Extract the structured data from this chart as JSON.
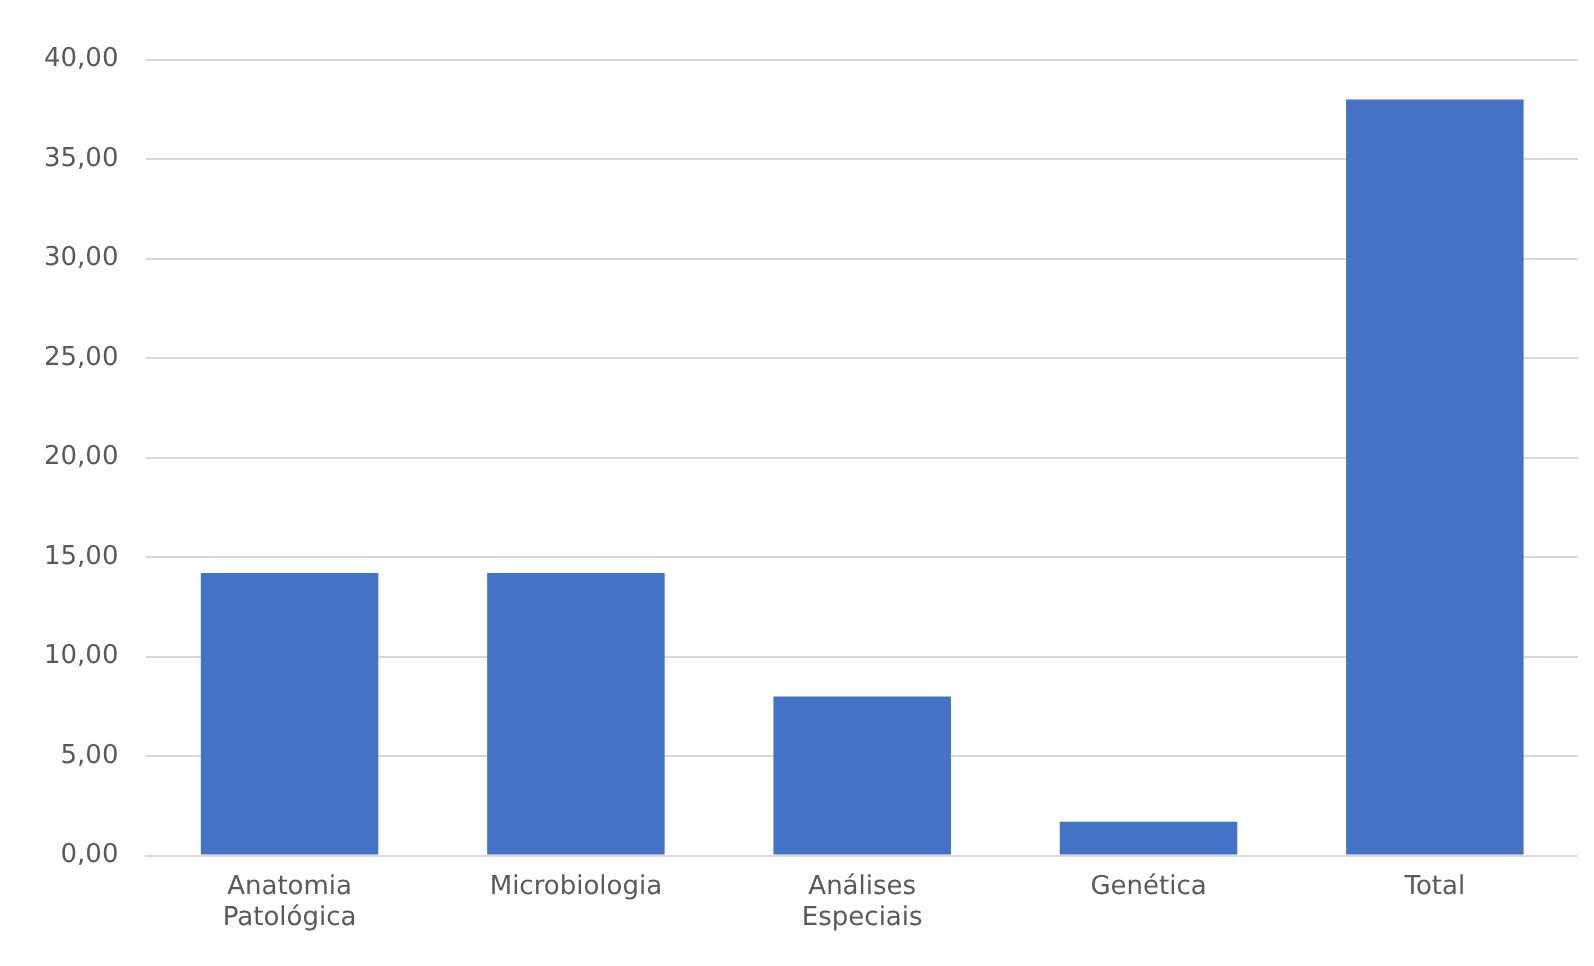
{
  "chart_data": {
    "type": "bar",
    "categories": [
      "Anatomia Patológica",
      "Microbiologia",
      "Análises Especiais",
      "Genética",
      "Total"
    ],
    "values": [
      14.2,
      14.2,
      8.0,
      1.7,
      38.0
    ],
    "color": "#4472c4",
    "ylim": [
      0,
      40
    ],
    "yticks": [
      {
        "value": 0,
        "label": "0,00"
      },
      {
        "value": 5,
        "label": "5,00"
      },
      {
        "value": 10,
        "label": "10,00"
      },
      {
        "value": 15,
        "label": "15,00"
      },
      {
        "value": 20,
        "label": "20,00"
      },
      {
        "value": 25,
        "label": "25,00"
      },
      {
        "value": 30,
        "label": "30,00"
      },
      {
        "value": 35,
        "label": "35,00"
      },
      {
        "value": 40,
        "label": "40,00"
      }
    ],
    "grid": "y"
  }
}
